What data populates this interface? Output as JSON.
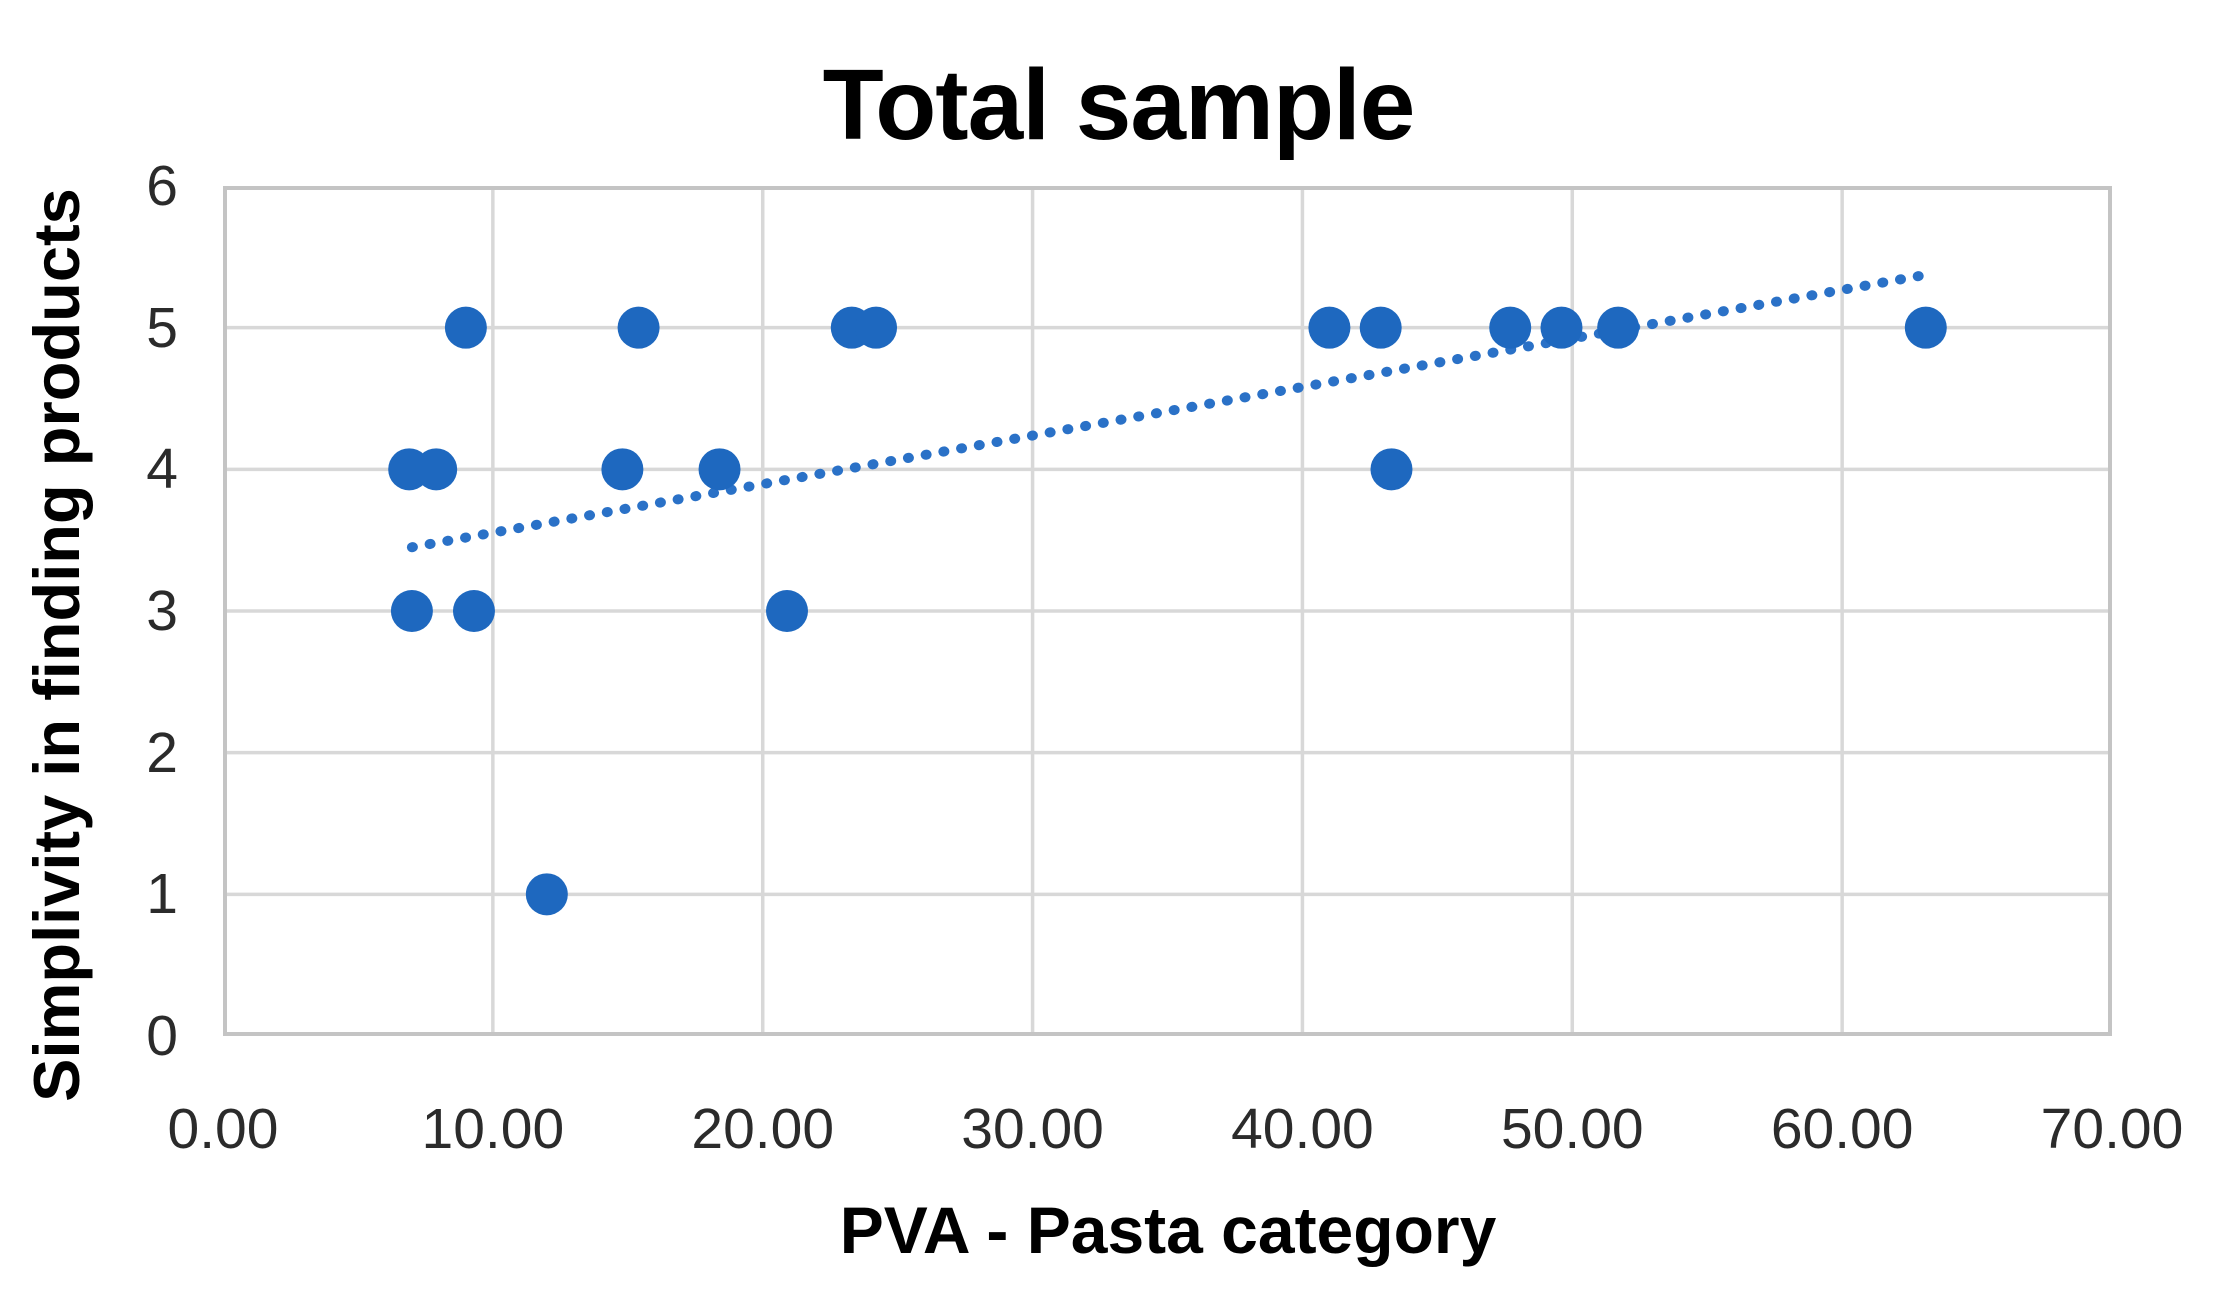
{
  "figure": {
    "title": "Total sample",
    "x_axis": {
      "label": "PVA - Pasta category",
      "ticks": [
        "0.00",
        "10.00",
        "20.00",
        "30.00",
        "40.00",
        "50.00",
        "60.00",
        "70.00"
      ]
    },
    "y_axis": {
      "label": "Simplivity in finding products",
      "ticks": [
        "0",
        "1",
        "2",
        "3",
        "4",
        "5",
        "6"
      ]
    }
  },
  "chart_data": {
    "type": "scatter",
    "title": "Total sample",
    "xlabel": "PVA - Pasta category",
    "ylabel": "Simplivity in finding products",
    "xlim": [
      0,
      70
    ],
    "ylim": [
      0,
      6
    ],
    "grid": true,
    "legend": "none",
    "x_tick_step": 10,
    "y_tick_step": 1,
    "points": [
      {
        "x": 9.0,
        "y": 5
      },
      {
        "x": 15.4,
        "y": 5
      },
      {
        "x": 23.3,
        "y": 5
      },
      {
        "x": 24.2,
        "y": 5
      },
      {
        "x": 41.0,
        "y": 5
      },
      {
        "x": 42.9,
        "y": 5
      },
      {
        "x": 47.7,
        "y": 5
      },
      {
        "x": 49.6,
        "y": 5
      },
      {
        "x": 51.7,
        "y": 5
      },
      {
        "x": 63.1,
        "y": 5
      },
      {
        "x": 6.9,
        "y": 4
      },
      {
        "x": 7.9,
        "y": 4
      },
      {
        "x": 14.8,
        "y": 4
      },
      {
        "x": 18.4,
        "y": 4
      },
      {
        "x": 43.3,
        "y": 4
      },
      {
        "x": 7.0,
        "y": 3
      },
      {
        "x": 9.3,
        "y": 3
      },
      {
        "x": 20.9,
        "y": 3
      },
      {
        "x": 12.0,
        "y": 1
      }
    ],
    "trendline": {
      "style": "dotted",
      "x1": 7.0,
      "y1": 3.45,
      "x2": 63.3,
      "y2": 5.38
    }
  },
  "colors": {
    "marker": "#1e68bf",
    "trendline": "#2a71c7",
    "gridline": "#d8d8d8",
    "plot_border": "#c4c4c4",
    "tick_text": "#2b2b2b",
    "title_text": "#000000"
  }
}
